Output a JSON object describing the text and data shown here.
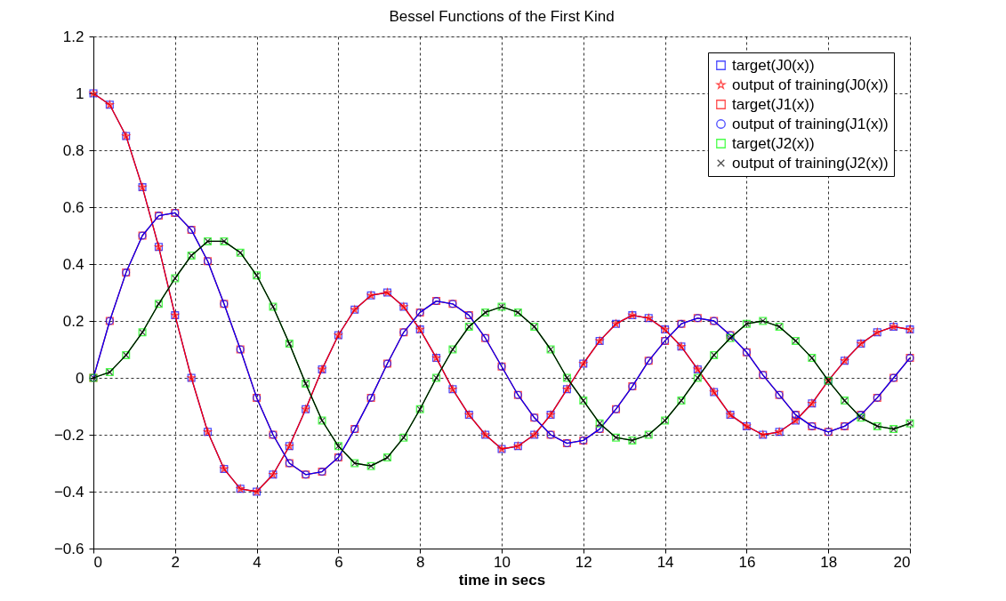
{
  "chart_data": {
    "type": "line",
    "title": "Bessel Functions of the First Kind",
    "xlabel": "time in secs",
    "x": [
      0,
      0.4,
      0.8,
      1.2,
      1.6,
      2,
      2.4,
      2.8,
      3.2,
      3.6,
      4,
      4.4,
      4.8,
      5.2,
      5.6,
      6,
      6.4,
      6.8,
      7.2,
      7.6,
      8,
      8.4,
      8.8,
      9.2,
      9.6,
      10,
      10.4,
      10.8,
      11.2,
      11.6,
      12,
      12.4,
      12.8,
      13.2,
      13.6,
      14,
      14.4,
      14.8,
      15.2,
      15.6,
      16,
      16.4,
      16.8,
      17.2,
      17.6,
      18,
      18.4,
      18.8,
      19.2,
      19.6,
      20
    ],
    "series": [
      {
        "name": "target(J0(x))",
        "color": "#0000ff",
        "marker": "square",
        "values": [
          1,
          0.96,
          0.85,
          0.67,
          0.46,
          0.22,
          0,
          -0.19,
          -0.32,
          -0.39,
          -0.4,
          -0.34,
          -0.24,
          -0.11,
          0.03,
          0.15,
          0.24,
          0.29,
          0.3,
          0.25,
          0.17,
          0.07,
          -0.04,
          -0.13,
          -0.2,
          -0.25,
          -0.24,
          -0.2,
          -0.13,
          -0.04,
          0.05,
          0.13,
          0.19,
          0.22,
          0.21,
          0.17,
          0.11,
          0.03,
          -0.05,
          -0.13,
          -0.17,
          -0.2,
          -0.19,
          -0.15,
          -0.09,
          -0.01,
          0.06,
          0.12,
          0.16,
          0.18,
          0.17
        ]
      },
      {
        "name": "output of training(J0(x))",
        "color": "#ff0000",
        "marker": "star",
        "values": [
          1,
          0.96,
          0.85,
          0.67,
          0.46,
          0.22,
          0,
          -0.19,
          -0.32,
          -0.39,
          -0.4,
          -0.34,
          -0.24,
          -0.11,
          0.03,
          0.15,
          0.24,
          0.29,
          0.3,
          0.25,
          0.17,
          0.07,
          -0.04,
          -0.13,
          -0.2,
          -0.25,
          -0.24,
          -0.2,
          -0.13,
          -0.04,
          0.05,
          0.13,
          0.19,
          0.22,
          0.21,
          0.17,
          0.11,
          0.03,
          -0.05,
          -0.13,
          -0.17,
          -0.2,
          -0.19,
          -0.15,
          -0.09,
          -0.01,
          0.06,
          0.12,
          0.16,
          0.18,
          0.17
        ]
      },
      {
        "name": "target(J1(x))",
        "color": "#ff0000",
        "marker": "square",
        "values": [
          0,
          0.2,
          0.37,
          0.5,
          0.57,
          0.58,
          0.52,
          0.41,
          0.26,
          0.1,
          -0.07,
          -0.2,
          -0.3,
          -0.34,
          -0.33,
          -0.28,
          -0.18,
          -0.07,
          0.05,
          0.16,
          0.23,
          0.27,
          0.26,
          0.22,
          0.14,
          0.04,
          -0.06,
          -0.14,
          -0.2,
          -0.23,
          -0.22,
          -0.18,
          -0.11,
          -0.03,
          0.06,
          0.13,
          0.19,
          0.21,
          0.2,
          0.15,
          0.09,
          0.01,
          -0.06,
          -0.13,
          -0.17,
          -0.19,
          -0.17,
          -0.13,
          -0.07,
          0,
          0.07
        ]
      },
      {
        "name": "output of training(J1(x))",
        "color": "#0000ff",
        "marker": "circle",
        "values": [
          0,
          0.2,
          0.37,
          0.5,
          0.57,
          0.58,
          0.52,
          0.41,
          0.26,
          0.1,
          -0.07,
          -0.2,
          -0.3,
          -0.34,
          -0.33,
          -0.28,
          -0.18,
          -0.07,
          0.05,
          0.16,
          0.23,
          0.27,
          0.26,
          0.22,
          0.14,
          0.04,
          -0.06,
          -0.14,
          -0.2,
          -0.23,
          -0.22,
          -0.18,
          -0.11,
          -0.03,
          0.06,
          0.13,
          0.19,
          0.21,
          0.2,
          0.15,
          0.09,
          0.01,
          -0.06,
          -0.13,
          -0.17,
          -0.19,
          -0.17,
          -0.13,
          -0.07,
          0,
          0.07
        ]
      },
      {
        "name": "target(J2(x))",
        "color": "#00ff00",
        "marker": "square",
        "values": [
          0,
          0.02,
          0.08,
          0.16,
          0.26,
          0.35,
          0.43,
          0.48,
          0.48,
          0.44,
          0.36,
          0.25,
          0.12,
          -0.02,
          -0.15,
          -0.24,
          -0.3,
          -0.31,
          -0.28,
          -0.21,
          -0.11,
          0,
          0.1,
          0.18,
          0.23,
          0.25,
          0.23,
          0.18,
          0.1,
          0,
          -0.08,
          -0.16,
          -0.21,
          -0.22,
          -0.2,
          -0.15,
          -0.08,
          0,
          0.08,
          0.14,
          0.19,
          0.2,
          0.18,
          0.13,
          0.07,
          -0.01,
          -0.08,
          -0.14,
          -0.17,
          -0.18,
          -0.16
        ]
      },
      {
        "name": "output of training(J2(x))",
        "color": "#000000",
        "marker": "cross",
        "values": [
          0,
          0.02,
          0.08,
          0.16,
          0.26,
          0.35,
          0.43,
          0.48,
          0.48,
          0.44,
          0.36,
          0.25,
          0.12,
          -0.02,
          -0.15,
          -0.24,
          -0.3,
          -0.31,
          -0.28,
          -0.21,
          -0.11,
          0,
          0.1,
          0.18,
          0.23,
          0.25,
          0.23,
          0.18,
          0.1,
          0,
          -0.08,
          -0.16,
          -0.21,
          -0.22,
          -0.2,
          -0.15,
          -0.08,
          0,
          0.08,
          0.14,
          0.19,
          0.2,
          0.18,
          0.13,
          0.07,
          -0.01,
          -0.08,
          -0.14,
          -0.17,
          -0.18,
          -0.16
        ]
      }
    ],
    "xlim": [
      0,
      20
    ],
    "xticks": [
      0,
      2,
      4,
      6,
      8,
      10,
      12,
      14,
      16,
      18,
      20
    ],
    "ylim": [
      -0.6,
      1.2
    ],
    "yticks": [
      -0.6,
      -0.4,
      -0.2,
      0,
      0.2,
      0.4,
      0.6,
      0.8,
      1,
      1.2
    ],
    "grid": true,
    "legend": "top right",
    "line_style": "solid"
  }
}
